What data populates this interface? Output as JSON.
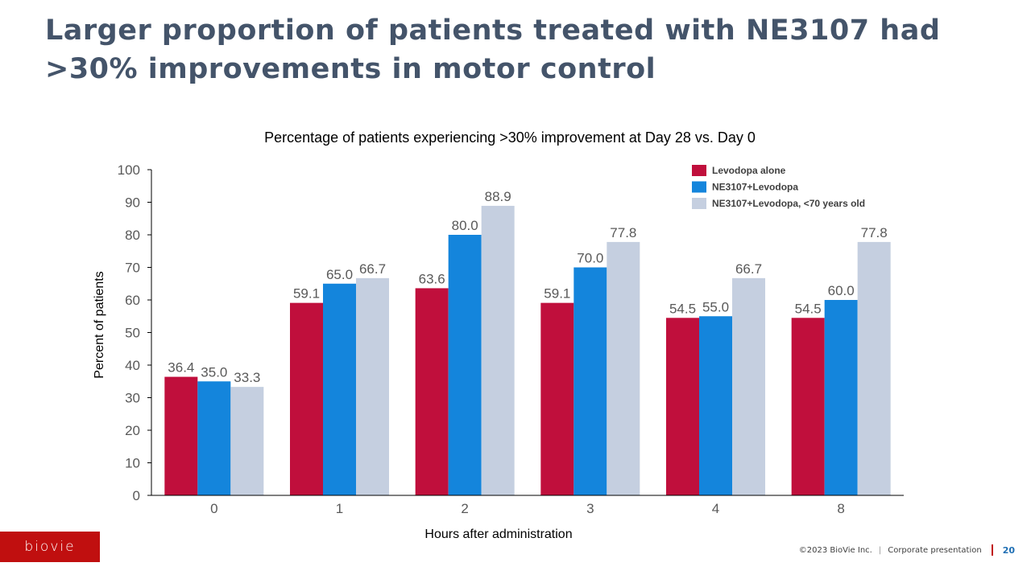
{
  "slide": {
    "title": "Larger proportion of patients treated with NE3107 had >30% improvements in motor control",
    "logo_text": "biovie",
    "footer": {
      "copyright": "©2023 BioVie Inc.",
      "separator": "|",
      "section": "Corporate presentation",
      "page_number": "20"
    }
  },
  "chart_data": {
    "type": "bar",
    "title": "Percentage of patients experiencing >30% improvement at Day 28 vs. Day 0",
    "xlabel": "Hours after administration",
    "ylabel": "Percent of patients",
    "categories": [
      "0",
      "1",
      "2",
      "3",
      "4",
      "8"
    ],
    "ylim": [
      0,
      100
    ],
    "yticks": [
      0,
      10,
      20,
      30,
      40,
      50,
      60,
      70,
      80,
      90,
      100
    ],
    "grid": false,
    "legend_position": "top-right",
    "series": [
      {
        "name": "Levodopa alone",
        "color": "#c00f3c",
        "values": [
          36.4,
          59.1,
          63.6,
          59.1,
          54.5,
          54.5
        ],
        "labels": [
          "36.4",
          "59.1",
          "63.6",
          "59.1",
          "54.5",
          "54.5"
        ]
      },
      {
        "name": "NE3107+Levodopa",
        "color": "#1485dc",
        "values": [
          35.0,
          65.0,
          80.0,
          70.0,
          55.0,
          60.0
        ],
        "labels": [
          "35.0",
          "65.0",
          "80.0",
          "70.0",
          "55.0",
          "60.0"
        ]
      },
      {
        "name": "NE3107+Levodopa, <70 years old",
        "color": "#c5cfe0",
        "values": [
          33.3,
          66.7,
          88.9,
          77.8,
          66.7,
          77.8
        ],
        "labels": [
          "33.3",
          "66.7",
          "88.9",
          "77.8",
          "66.7",
          "77.8"
        ]
      }
    ]
  }
}
